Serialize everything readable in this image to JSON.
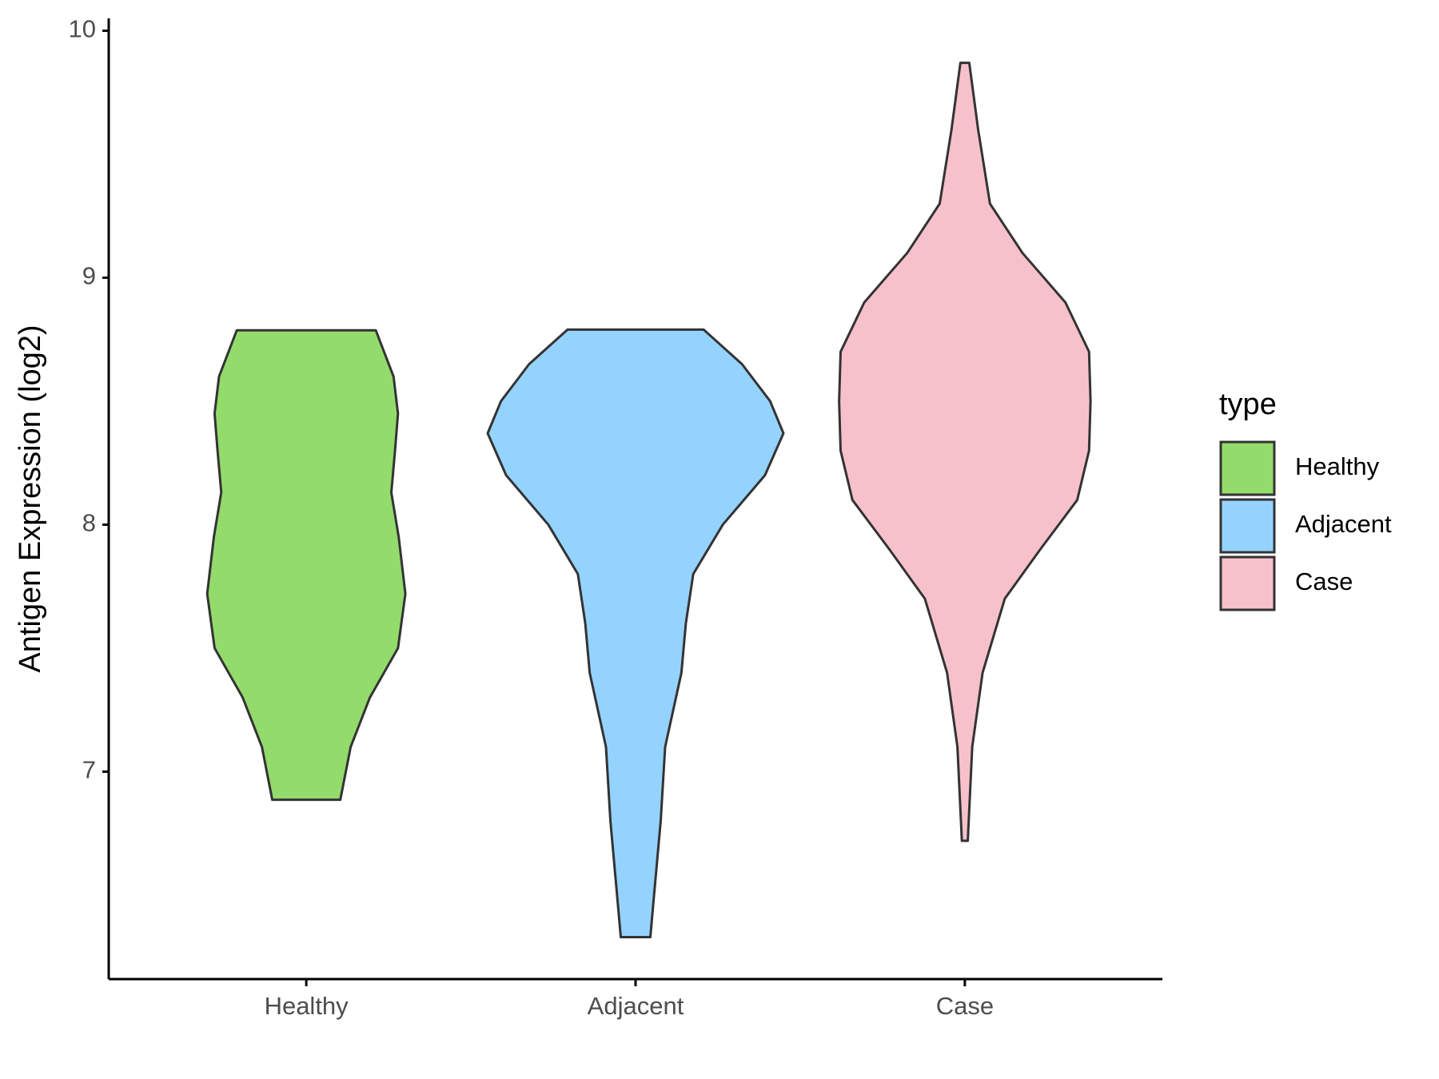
{
  "chart_data": {
    "type": "violin",
    "y_label": "Antigen Expression (log2)",
    "categories": [
      "Healthy",
      "Adjacent",
      "Case"
    ],
    "legend_title": "type",
    "legend_position": "right",
    "ylim": [
      6.16,
      10.05
    ],
    "yticks": [
      7,
      8,
      9,
      10
    ],
    "series": [
      {
        "name": "Healthy",
        "color": "#93db6b",
        "y": [
          6.886,
          7.1,
          7.3,
          7.5,
          7.72,
          7.95,
          8.13,
          8.3,
          8.45,
          8.6,
          8.787
        ],
        "density": [
          0.23,
          0.3,
          0.43,
          0.62,
          0.67,
          0.625,
          0.575,
          0.6,
          0.62,
          0.59,
          0.47
        ]
      },
      {
        "name": "Adjacent",
        "color": "#95d3ff",
        "y": [
          6.33,
          6.5,
          6.8,
          7.1,
          7.4,
          7.6,
          7.8,
          8.0,
          8.2,
          8.37,
          8.5,
          8.65,
          8.79
        ],
        "density": [
          0.1,
          0.125,
          0.17,
          0.2,
          0.31,
          0.34,
          0.39,
          0.59,
          0.875,
          1.0,
          0.91,
          0.72,
          0.46
        ]
      },
      {
        "name": "Case",
        "color": "#f7c1cb",
        "y": [
          6.72,
          7.1,
          7.4,
          7.7,
          7.9,
          8.1,
          8.3,
          8.5,
          8.7,
          8.9,
          9.1,
          9.3,
          9.6,
          9.87
        ],
        "density": [
          0.02,
          0.05,
          0.12,
          0.27,
          0.51,
          0.76,
          0.84,
          0.85,
          0.84,
          0.68,
          0.39,
          0.17,
          0.09,
          0.03
        ]
      }
    ]
  }
}
